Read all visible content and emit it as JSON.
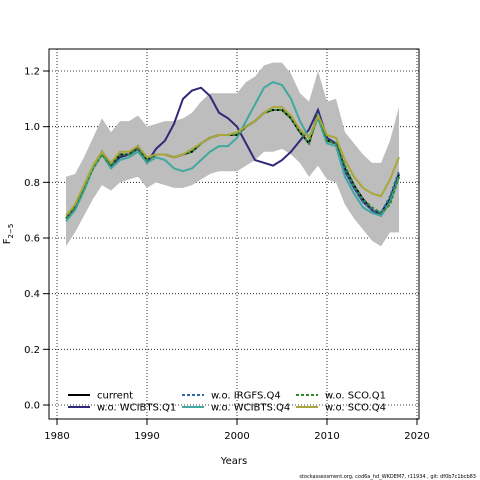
{
  "chart_data": {
    "type": "line",
    "ylabel": "F",
    "ylabel_sub": "2−5",
    "xlabel": "Years",
    "xlim": [
      1980,
      2020
    ],
    "ylim": [
      0.0,
      1.2
    ],
    "xticks": [
      1980,
      1990,
      2000,
      2010,
      2020
    ],
    "yticks": [
      0.0,
      0.2,
      0.4,
      0.6,
      0.8,
      1.0,
      1.2
    ],
    "grid": true,
    "legend_position": "bottom-left",
    "band": {
      "x": [
        1981,
        1982,
        1983,
        1984,
        1985,
        1986,
        1987,
        1988,
        1989,
        1990,
        1991,
        1992,
        1993,
        1994,
        1995,
        1996,
        1997,
        1998,
        1999,
        2000,
        2001,
        2002,
        2003,
        2004,
        2005,
        2006,
        2007,
        2008,
        2009,
        2010,
        2011,
        2012,
        2013,
        2014,
        2015,
        2016,
        2017,
        2018
      ],
      "upper": [
        0.82,
        0.83,
        0.89,
        0.96,
        1.03,
        0.98,
        1.02,
        1.02,
        1.04,
        1.0,
        1.01,
        1.02,
        1.02,
        1.03,
        1.05,
        1.09,
        1.12,
        1.12,
        1.12,
        1.12,
        1.16,
        1.18,
        1.22,
        1.23,
        1.23,
        1.19,
        1.12,
        1.09,
        1.2,
        1.09,
        1.1,
        0.98,
        0.94,
        0.9,
        0.87,
        0.87,
        0.95,
        1.07
      ],
      "lower": [
        0.57,
        0.62,
        0.68,
        0.74,
        0.79,
        0.77,
        0.8,
        0.81,
        0.82,
        0.78,
        0.8,
        0.79,
        0.78,
        0.78,
        0.79,
        0.81,
        0.83,
        0.84,
        0.84,
        0.84,
        0.86,
        0.88,
        0.91,
        0.91,
        0.92,
        0.9,
        0.87,
        0.82,
        0.86,
        0.81,
        0.8,
        0.72,
        0.67,
        0.63,
        0.59,
        0.57,
        0.62,
        0.62
      ]
    },
    "x": [
      1981,
      1982,
      1983,
      1984,
      1985,
      1986,
      1987,
      1988,
      1989,
      1990,
      1991,
      1992,
      1993,
      1994,
      1995,
      1996,
      1997,
      1998,
      1999,
      2000,
      2001,
      2002,
      2003,
      2004,
      2005,
      2006,
      2007,
      2008,
      2009,
      2010,
      2011,
      2012,
      2013,
      2014,
      2015,
      2016,
      2017,
      2018
    ],
    "series": [
      {
        "name": "current",
        "color": "#000000",
        "dash": "solid",
        "values": [
          0.67,
          0.71,
          0.78,
          0.85,
          0.91,
          0.86,
          0.9,
          0.9,
          0.93,
          0.88,
          0.9,
          0.9,
          0.89,
          0.9,
          0.91,
          0.94,
          0.96,
          0.97,
          0.97,
          0.97,
          1.0,
          1.02,
          1.05,
          1.06,
          1.06,
          1.03,
          0.98,
          0.94,
          1.05,
          0.95,
          0.94,
          0.85,
          0.79,
          0.74,
          0.7,
          0.69,
          0.74,
          0.83
        ]
      },
      {
        "name": "w.o. WCIBTS.Q1",
        "color": "#2f2a78",
        "dash": "solid",
        "values": [
          0.67,
          0.71,
          0.78,
          0.85,
          0.9,
          0.86,
          0.89,
          0.9,
          0.92,
          0.87,
          0.92,
          0.95,
          1.01,
          1.1,
          1.13,
          1.14,
          1.11,
          1.05,
          1.03,
          1.0,
          0.94,
          0.88,
          0.87,
          0.86,
          0.88,
          0.91,
          0.95,
          0.99,
          1.06,
          0.96,
          0.94,
          0.84,
          0.78,
          0.73,
          0.7,
          0.68,
          0.73,
          0.82
        ]
      },
      {
        "name": "w.o. IRGFS.Q4",
        "color": "#2f6da8",
        "dash": "dashed",
        "values": [
          0.67,
          0.71,
          0.78,
          0.85,
          0.9,
          0.86,
          0.9,
          0.9,
          0.92,
          0.88,
          0.9,
          0.9,
          0.89,
          0.9,
          0.91,
          0.94,
          0.96,
          0.97,
          0.97,
          0.97,
          1.0,
          1.02,
          1.05,
          1.06,
          1.06,
          1.03,
          0.98,
          0.94,
          1.05,
          0.95,
          0.94,
          0.84,
          0.78,
          0.73,
          0.7,
          0.69,
          0.75,
          0.84
        ]
      },
      {
        "name": "w.o. WCIBTS.Q4",
        "color": "#40a8a0",
        "dash": "solid",
        "values": [
          0.66,
          0.7,
          0.77,
          0.85,
          0.9,
          0.85,
          0.88,
          0.89,
          0.91,
          0.87,
          0.89,
          0.88,
          0.85,
          0.84,
          0.85,
          0.88,
          0.91,
          0.93,
          0.93,
          0.96,
          1.02,
          1.08,
          1.14,
          1.16,
          1.15,
          1.1,
          1.02,
          0.96,
          1.03,
          0.94,
          0.93,
          0.82,
          0.76,
          0.71,
          0.69,
          0.68,
          0.73,
          0.82
        ]
      },
      {
        "name": "w.o. SCO.Q1",
        "color": "#2d8a2d",
        "dash": "dashed",
        "values": [
          0.67,
          0.71,
          0.78,
          0.85,
          0.9,
          0.86,
          0.9,
          0.9,
          0.92,
          0.88,
          0.9,
          0.9,
          0.89,
          0.9,
          0.91,
          0.94,
          0.96,
          0.97,
          0.97,
          0.97,
          1.0,
          1.02,
          1.05,
          1.06,
          1.06,
          1.03,
          0.98,
          0.94,
          1.04,
          0.95,
          0.94,
          0.86,
          0.79,
          0.74,
          0.71,
          0.69,
          0.72,
          0.82
        ]
      },
      {
        "name": "w.o. SCO.Q4",
        "color": "#a9a73a",
        "dash": "solid",
        "values": [
          0.68,
          0.72,
          0.79,
          0.86,
          0.91,
          0.87,
          0.91,
          0.91,
          0.93,
          0.89,
          0.9,
          0.9,
          0.89,
          0.9,
          0.92,
          0.94,
          0.96,
          0.97,
          0.97,
          0.98,
          1.0,
          1.02,
          1.05,
          1.07,
          1.07,
          1.04,
          0.99,
          0.96,
          1.04,
          0.97,
          0.96,
          0.88,
          0.82,
          0.78,
          0.76,
          0.75,
          0.81,
          0.89
        ]
      }
    ]
  },
  "footer": "stockassessment.org, cod6a_hd_WKDEM7, r11934 , git: df0b7c1bcb83"
}
